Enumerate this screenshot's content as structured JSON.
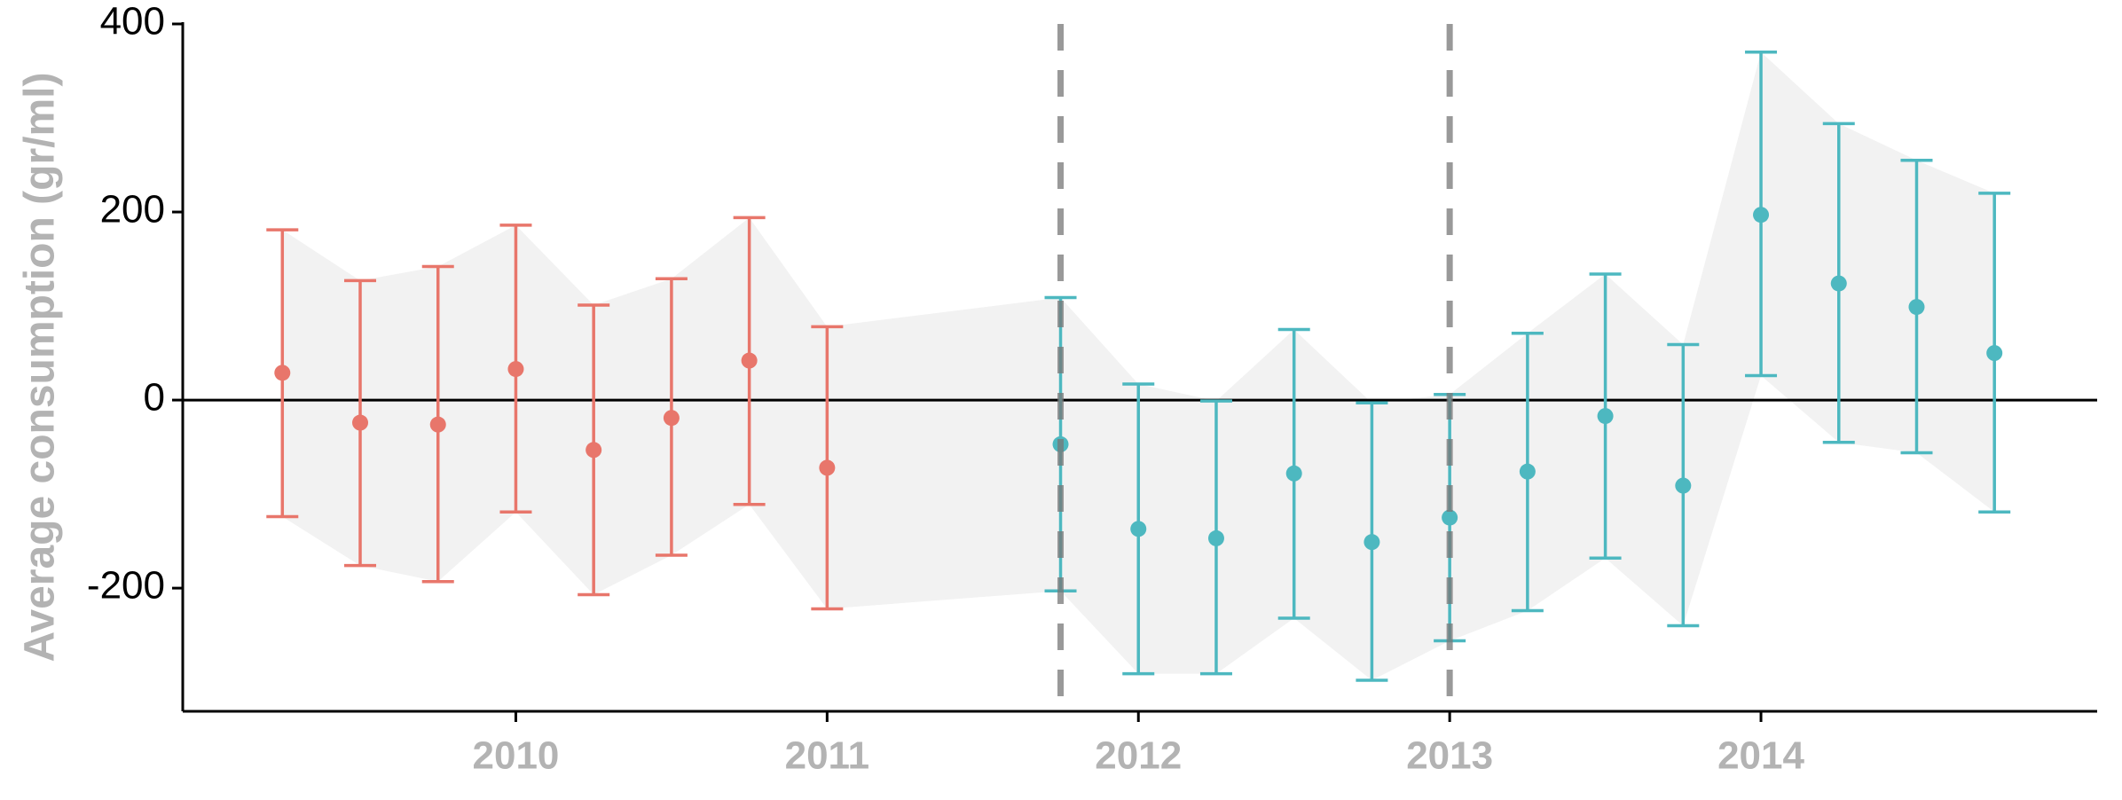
{
  "chart_data": {
    "type": "errorbar",
    "y_label": "Average consumption (gr/ml)",
    "xlim": [
      2008.93,
      2015.08
    ],
    "xticks": [
      2010,
      2011,
      2012,
      2013,
      2014
    ],
    "ylim": [
      -331,
      400
    ],
    "yticks": [
      -200,
      0,
      200,
      400
    ],
    "hline": 0,
    "vlines": [
      2011.75,
      2013
    ],
    "ribbon_color": "#f2f2f2",
    "series": [
      {
        "color": "#E8766B",
        "x": [
          2009.25,
          2009.5,
          2009.75,
          2010,
          2010.25,
          2010.5,
          2010.75,
          2011
        ],
        "values": [
          29,
          -24,
          -26,
          33,
          -53,
          -19,
          42,
          -72
        ],
        "lower": [
          -124,
          -176,
          -193,
          -119,
          -207,
          -165,
          -111,
          -222
        ],
        "upper": [
          181,
          127,
          142,
          186,
          101,
          129,
          194,
          78
        ]
      },
      {
        "color": "#4DB8C0",
        "x": [
          2011.75,
          2012,
          2012.25,
          2012.5,
          2012.75,
          2013,
          2013.25,
          2013.5,
          2013.75,
          2014,
          2014.25,
          2014.5,
          2014.75
        ],
        "values": [
          -47,
          -137,
          -147,
          -78,
          -151,
          -125,
          -76,
          -17,
          -91,
          197,
          124,
          99,
          50
        ],
        "lower": [
          -203,
          -291,
          -291,
          -232,
          -298,
          -256,
          -224,
          -168,
          -240,
          26,
          -45,
          -56,
          -119
        ],
        "upper": [
          109,
          17,
          -1,
          75,
          -3,
          6,
          71,
          134,
          59,
          370,
          294,
          255,
          220
        ]
      }
    ]
  }
}
